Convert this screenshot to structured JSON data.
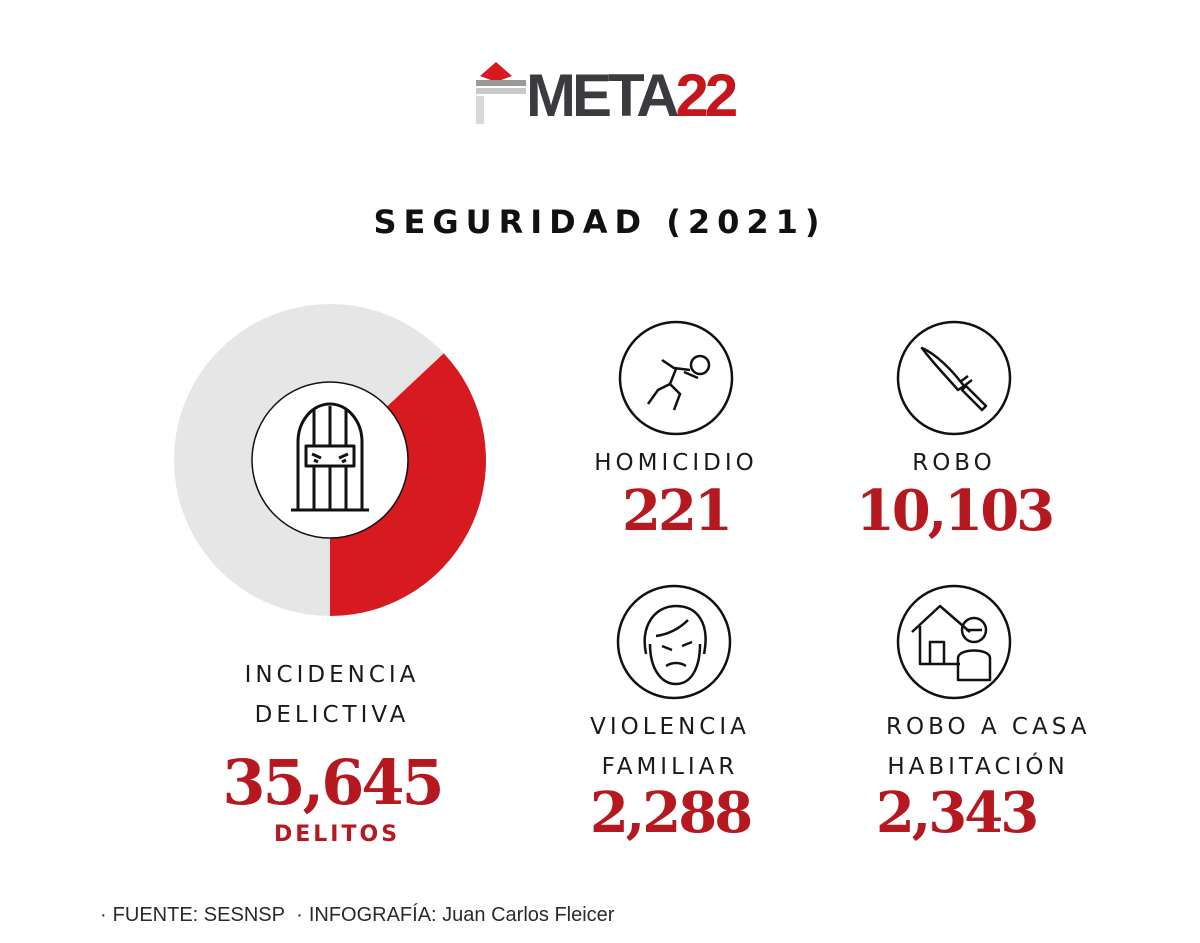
{
  "brand": {
    "logo_part1": "META",
    "logo_part2": "22"
  },
  "title": "SEGURIDAD (2021)",
  "chart_data": {
    "type": "pie",
    "title": "INCIDENCIA DELICTIVA",
    "slices": [
      {
        "name": "highlighted",
        "share": 0.37,
        "color": "#d71920"
      },
      {
        "name": "rest",
        "share": 0.63,
        "color": "#e6e6e6"
      }
    ],
    "center_icon": "jail-prisoner-icon"
  },
  "main": {
    "label_line1": "INCIDENCIA",
    "label_line2": "DELICTIVA",
    "value": "35,645",
    "unit": "DELITOS"
  },
  "stats": {
    "homicidio": {
      "label": "HOMICIDIO",
      "value": "221",
      "icon": "body-outline-icon"
    },
    "robo": {
      "label": "ROBO",
      "value": "10,103",
      "icon": "knife-icon"
    },
    "violencia": {
      "label_line1": "VIOLENCIA",
      "label_line2": "FAMILIAR",
      "value": "2,288",
      "icon": "crying-face-icon"
    },
    "robo_casa": {
      "label_line1": "ROBO A CASA",
      "label_line2": "HABITACIÓN",
      "value": "2,343",
      "icon": "burglar-house-icon"
    }
  },
  "footer": {
    "fuente_label": "FUENTE:",
    "fuente_value": "SESNSP",
    "infografia_label": "INFOGRAFÍA:",
    "infografia_value": "Juan Carlos Fleicer"
  },
  "colors": {
    "accent": "#c4161c",
    "number": "#b5191f",
    "dark": "#3a3b3f",
    "ring": "#e6e6e6"
  }
}
